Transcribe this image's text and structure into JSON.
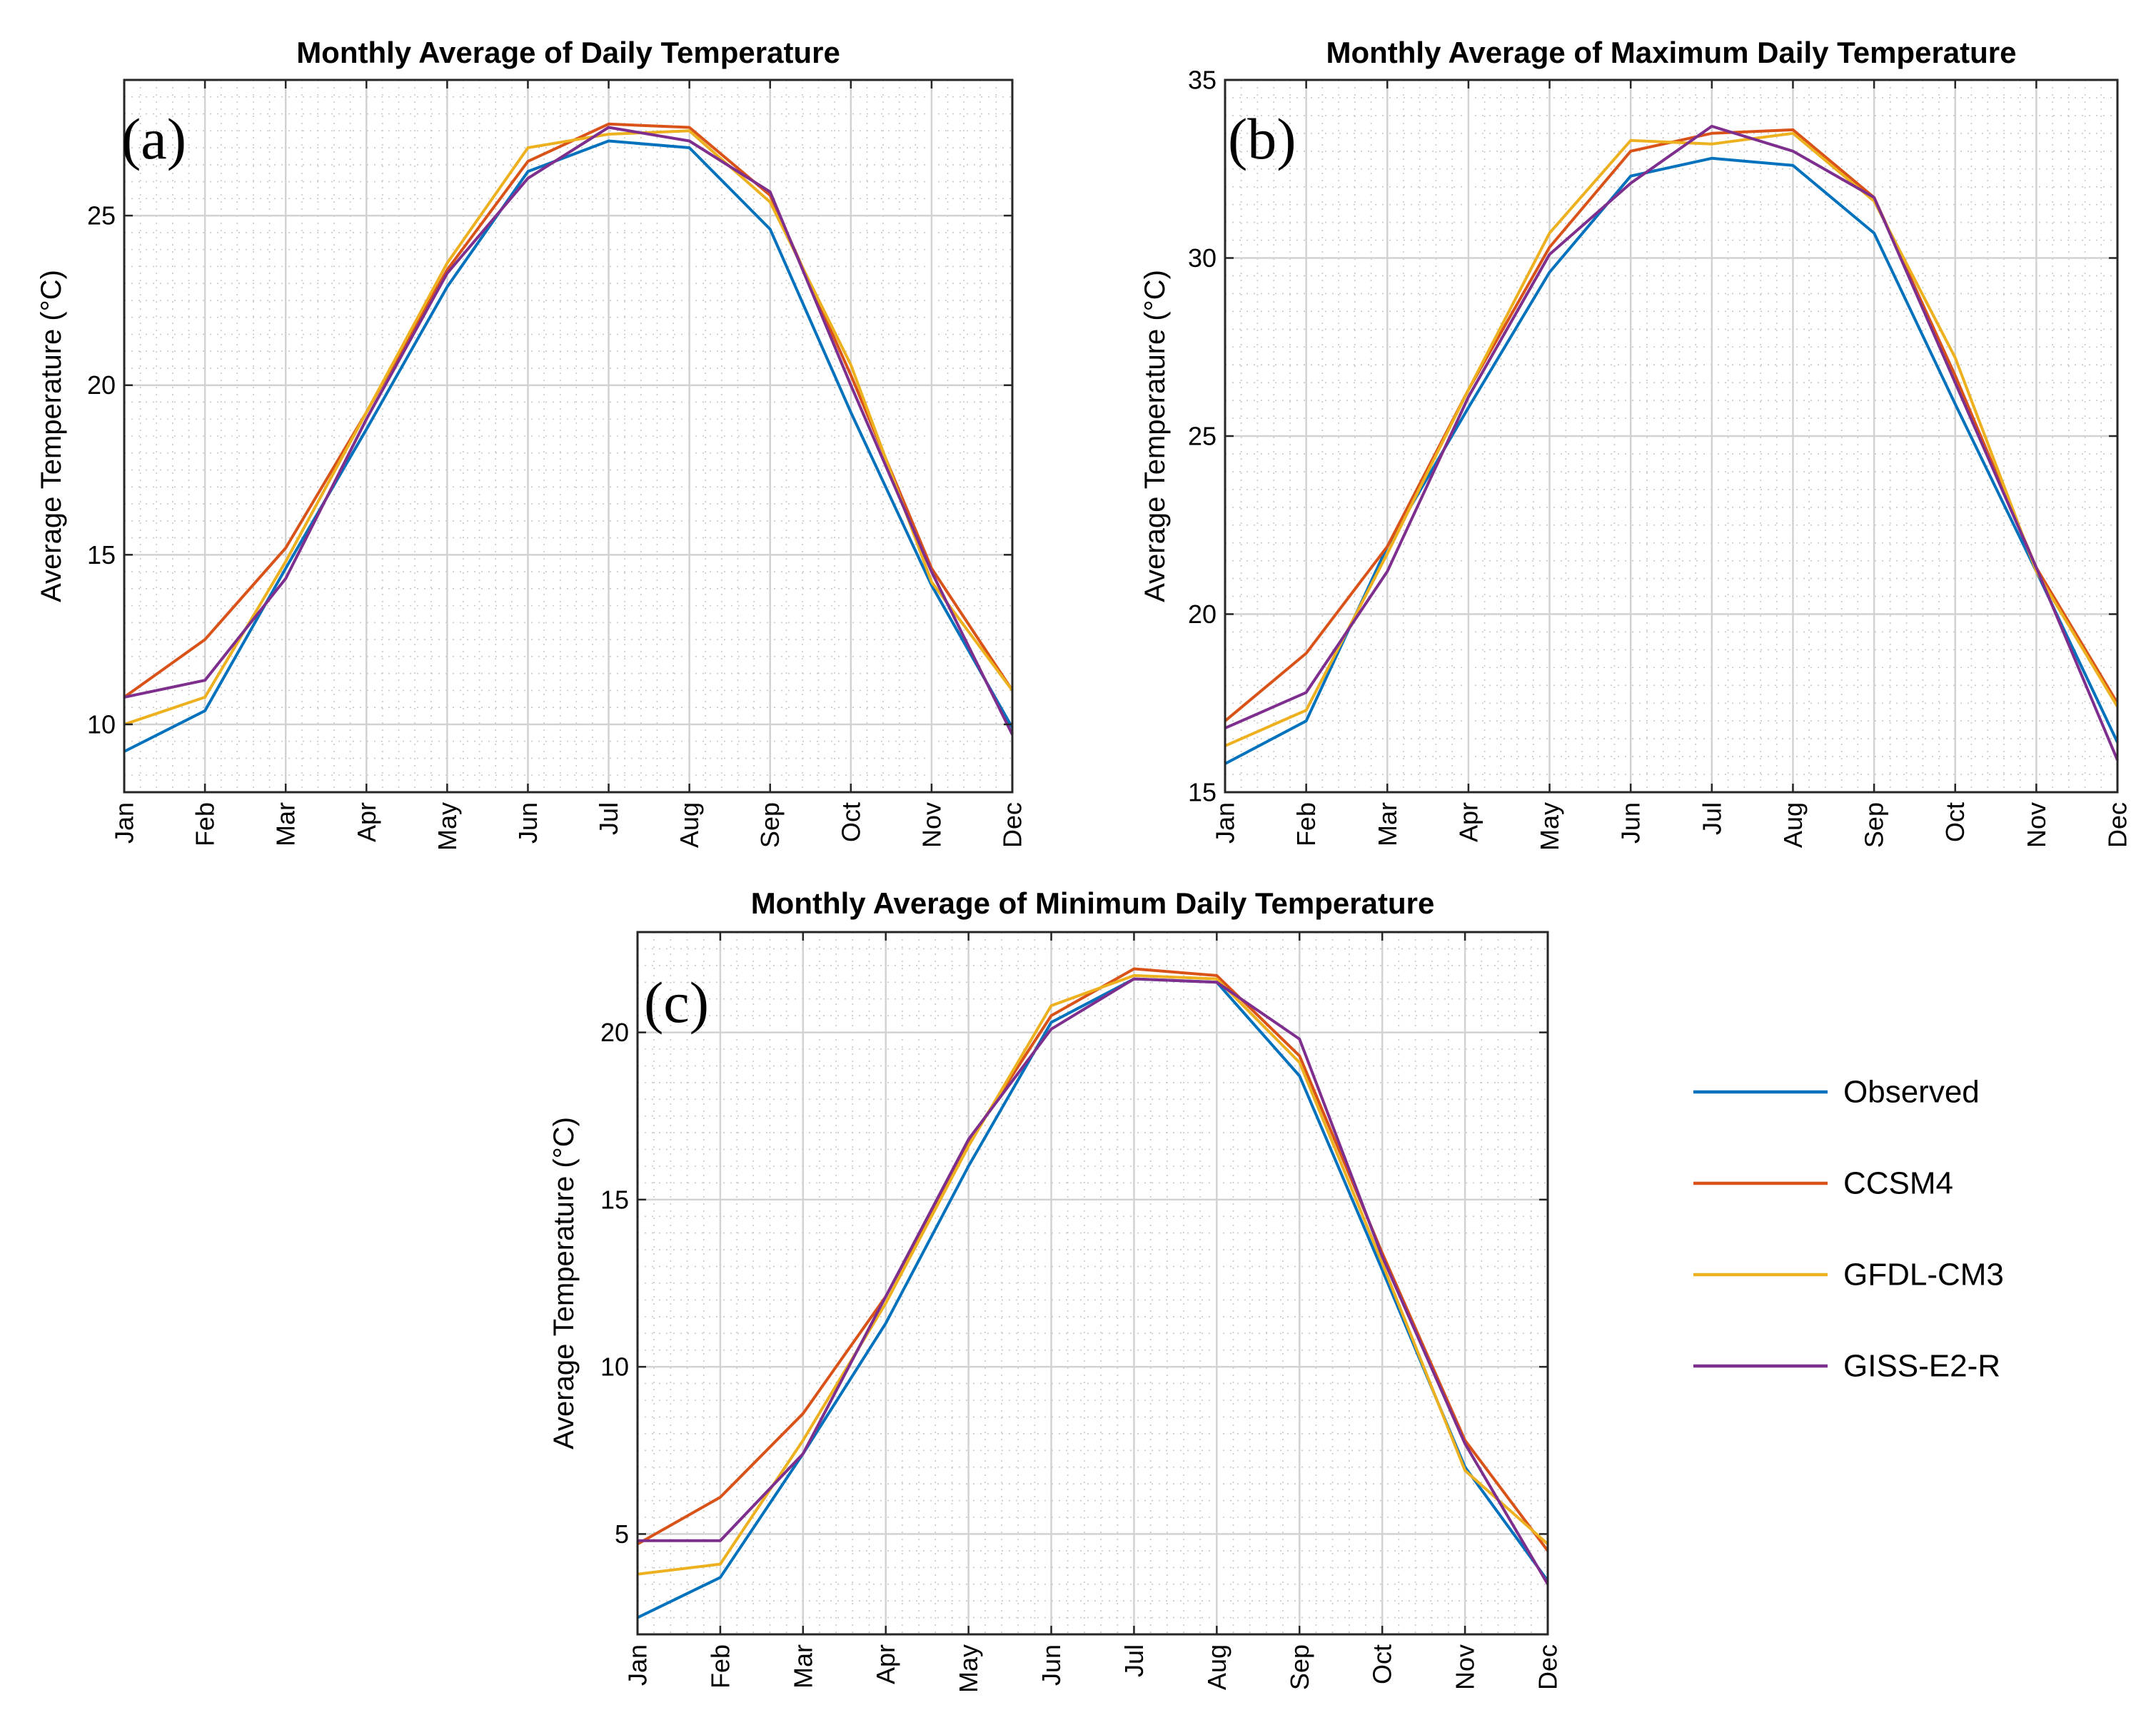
{
  "figure": {
    "legend": [
      {
        "name": "Observed",
        "color": "#0072BD"
      },
      {
        "name": "CCSM4",
        "color": "#D95319"
      },
      {
        "name": "GFDL-CM3",
        "color": "#EDB120"
      },
      {
        "name": "GISS-E2-R",
        "color": "#7E2F8E"
      }
    ]
  },
  "chart_data": [
    {
      "type": "line",
      "panel_label": "(a)",
      "title": "Monthly Average of Daily Temperature",
      "xlabel": "",
      "ylabel": "Average Temperature (°C)",
      "categories": [
        "Jan",
        "Feb",
        "Mar",
        "Apr",
        "May",
        "Jun",
        "Jul",
        "Aug",
        "Sep",
        "Oct",
        "Nov",
        "Dec"
      ],
      "ylim": [
        8,
        29
      ],
      "yticks": [
        10,
        15,
        20,
        25
      ],
      "grid": "on",
      "series": [
        {
          "name": "Observed",
          "color": "#0072BD",
          "values": [
            9.2,
            10.4,
            14.6,
            18.7,
            22.9,
            26.3,
            27.2,
            27.0,
            24.6,
            19.2,
            14.1,
            9.9
          ]
        },
        {
          "name": "CCSM4",
          "color": "#D95319",
          "values": [
            10.8,
            12.5,
            15.2,
            19.2,
            23.4,
            26.6,
            27.7,
            27.6,
            25.6,
            20.3,
            14.6,
            11.0
          ]
        },
        {
          "name": "GFDL-CM3",
          "color": "#EDB120",
          "values": [
            10.0,
            10.8,
            14.8,
            19.2,
            23.6,
            27.0,
            27.4,
            27.5,
            25.4,
            20.6,
            14.2,
            11.0
          ]
        },
        {
          "name": "GISS-E2-R",
          "color": "#7E2F8E",
          "values": [
            10.8,
            11.3,
            14.3,
            19.0,
            23.3,
            26.1,
            27.6,
            27.2,
            25.7,
            20.0,
            14.5,
            9.7
          ]
        }
      ]
    },
    {
      "type": "line",
      "panel_label": "(b)",
      "title": "Monthly Average of Maximum Daily Temperature",
      "xlabel": "",
      "ylabel": "Average Temperature (°C)",
      "categories": [
        "Jan",
        "Feb",
        "Mar",
        "Apr",
        "May",
        "Jun",
        "Jul",
        "Aug",
        "Sep",
        "Oct",
        "Nov",
        "Dec"
      ],
      "ylim": [
        15,
        35
      ],
      "yticks": [
        15,
        20,
        25,
        30,
        35
      ],
      "grid": "on",
      "series": [
        {
          "name": "Observed",
          "color": "#0072BD",
          "values": [
            15.8,
            17.0,
            21.9,
            25.8,
            29.6,
            32.3,
            32.8,
            32.6,
            30.7,
            25.9,
            21.2,
            16.4
          ]
        },
        {
          "name": "CCSM4",
          "color": "#D95319",
          "values": [
            17.0,
            18.9,
            21.9,
            26.3,
            30.3,
            33.0,
            33.5,
            33.6,
            31.7,
            26.7,
            21.3,
            17.5
          ]
        },
        {
          "name": "GFDL-CM3",
          "color": "#EDB120",
          "values": [
            16.3,
            17.3,
            21.7,
            26.3,
            30.7,
            33.3,
            33.2,
            33.5,
            31.6,
            27.2,
            21.2,
            17.4
          ]
        },
        {
          "name": "GISS-E2-R",
          "color": "#7E2F8E",
          "values": [
            16.8,
            17.8,
            21.2,
            26.1,
            30.1,
            32.1,
            33.7,
            33.0,
            31.7,
            26.5,
            21.3,
            15.9
          ]
        }
      ]
    },
    {
      "type": "line",
      "panel_label": "(c)",
      "title": "Monthly Average of Minimum Daily Temperature",
      "xlabel": "",
      "ylabel": "Average Temperature (°C)",
      "categories": [
        "Jan",
        "Feb",
        "Mar",
        "Apr",
        "May",
        "Jun",
        "Jul",
        "Aug",
        "Sep",
        "Oct",
        "Nov",
        "Dec"
      ],
      "ylim": [
        2,
        23
      ],
      "yticks": [
        5,
        10,
        15,
        20
      ],
      "grid": "on",
      "series": [
        {
          "name": "Observed",
          "color": "#0072BD",
          "values": [
            2.5,
            3.7,
            7.4,
            11.3,
            16.0,
            20.3,
            21.6,
            21.5,
            18.7,
            12.9,
            7.0,
            3.6
          ]
        },
        {
          "name": "CCSM4",
          "color": "#D95319",
          "values": [
            4.7,
            6.1,
            8.6,
            12.1,
            16.7,
            20.5,
            21.9,
            21.7,
            19.3,
            13.4,
            7.8,
            4.5
          ]
        },
        {
          "name": "GFDL-CM3",
          "color": "#EDB120",
          "values": [
            3.8,
            4.1,
            7.8,
            11.9,
            16.6,
            20.8,
            21.7,
            21.6,
            19.1,
            13.1,
            6.9,
            4.7
          ]
        },
        {
          "name": "GISS-E2-R",
          "color": "#7E2F8E",
          "values": [
            4.8,
            4.8,
            7.4,
            12.1,
            16.8,
            20.1,
            21.6,
            21.5,
            19.8,
            13.3,
            7.7,
            3.5
          ]
        }
      ]
    }
  ]
}
